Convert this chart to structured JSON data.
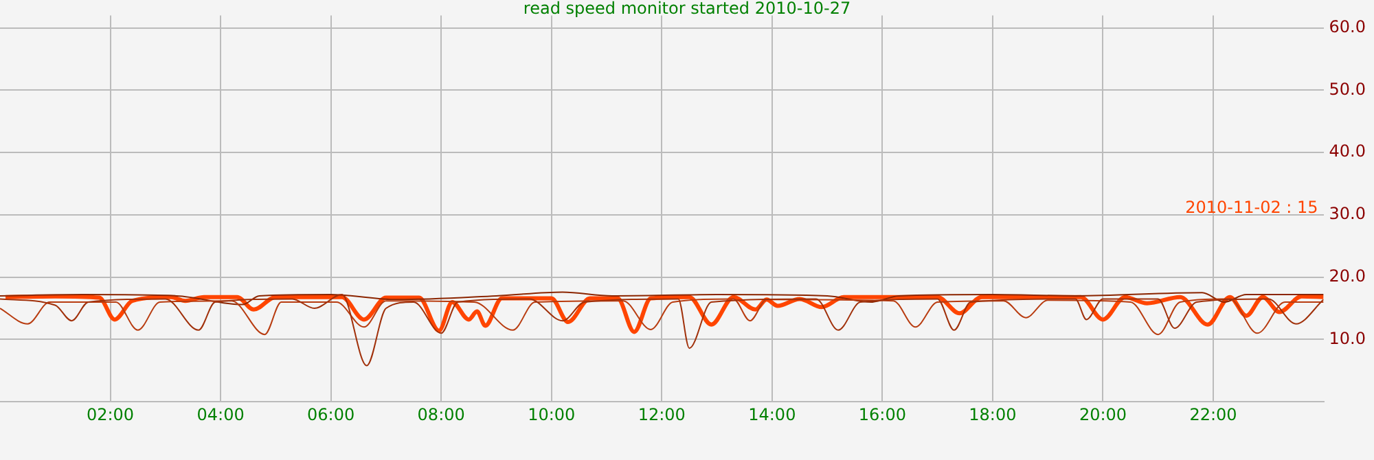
{
  "chart_data": {
    "type": "line",
    "title": "read speed monitor started 2010-10-27",
    "xlim": [
      0,
      24
    ],
    "xticks": [
      {
        "value": 2,
        "label": "02:00"
      },
      {
        "value": 4,
        "label": "04:00"
      },
      {
        "value": 6,
        "label": "06:00"
      },
      {
        "value": 8,
        "label": "08:00"
      },
      {
        "value": 10,
        "label": "10:00"
      },
      {
        "value": 12,
        "label": "12:00"
      },
      {
        "value": 14,
        "label": "14:00"
      },
      {
        "value": 16,
        "label": "16:00"
      },
      {
        "value": 18,
        "label": "18:00"
      },
      {
        "value": 20,
        "label": "20:00"
      },
      {
        "value": 22,
        "label": "22:00"
      }
    ],
    "ylim": [
      0,
      62
    ],
    "yticks": [
      {
        "value": 10,
        "label": "10.0"
      },
      {
        "value": 20,
        "label": "20.0"
      },
      {
        "value": 30,
        "label": "30.0"
      },
      {
        "value": 40,
        "label": "40.0"
      },
      {
        "value": 50,
        "label": "50.0"
      },
      {
        "value": 60,
        "label": "60.0"
      }
    ],
    "grid": true,
    "series": [
      {
        "color": "#a0300a",
        "x": [
          0,
          1.0,
          1.3,
          1.6,
          3.0,
          3.6,
          3.9,
          5.3,
          5.7,
          6.2,
          6.65,
          7.0,
          7.5,
          8.0,
          8.3,
          9.6,
          10.2,
          10.6,
          12.3,
          12.5,
          12.9,
          14.8,
          15.2,
          15.6,
          17.0,
          17.3,
          17.6,
          19.5,
          19.7,
          20,
          21,
          21.3,
          21.7,
          23,
          23.5,
          24
        ],
        "values": [
          16.5,
          15.5,
          13,
          16,
          16.5,
          11.5,
          16,
          16.5,
          15,
          17.2,
          5.8,
          15,
          16,
          11,
          16,
          16.5,
          13,
          16,
          16.5,
          8.6,
          16,
          16.5,
          11.5,
          16,
          16.5,
          11.5,
          16,
          16.5,
          13.2,
          16.5,
          16.5,
          11.8,
          16,
          16.5,
          12.5,
          16.4
        ]
      },
      {
        "color": "#b83c10",
        "x": [
          0,
          0.5,
          0.9,
          2.1,
          2.5,
          2.9,
          4.2,
          4.8,
          5.1,
          6.1,
          6.6,
          7.0,
          8.6,
          9.3,
          9.7,
          11.3,
          11.8,
          12.2,
          13.3,
          13.6,
          13.9,
          16.2,
          16.6,
          17.0,
          18.2,
          18.6,
          19,
          20.5,
          21.0,
          21.4,
          22.3,
          22.8,
          23.3,
          24
        ],
        "values": [
          15,
          12.5,
          16,
          16,
          11.5,
          16,
          16.2,
          10.8,
          16,
          16,
          12,
          16.2,
          16,
          11.5,
          16,
          16.2,
          11.6,
          16,
          16.5,
          13,
          16.4,
          16.2,
          12,
          16,
          16.2,
          13.5,
          16.3,
          16,
          10.8,
          16,
          16.5,
          11,
          16,
          16
        ]
      },
      {
        "color": "#8b2500",
        "x": [
          0,
          1.5,
          3.2,
          4.4,
          4.7,
          6.0,
          7.2,
          9,
          10.2,
          11.1,
          13,
          15,
          15.8,
          16.3,
          18,
          19.5,
          21.8,
          22.2,
          22.6,
          24
        ],
        "values": [
          17,
          17.2,
          17,
          15.6,
          17,
          17.2,
          16.4,
          17,
          17.6,
          17,
          17.2,
          17,
          16,
          17,
          17.2,
          17,
          17.5,
          16,
          17.2,
          17.2
        ]
      },
      {
        "name": "2010-11-02 : 15",
        "color": "#ff4500",
        "x": [
          0.1,
          1.0,
          1.8,
          2.08,
          2.4,
          3.1,
          3.36,
          3.7,
          4.3,
          4.6,
          5.0,
          6.2,
          6.6,
          7.0,
          7.6,
          7.96,
          8.2,
          8.5,
          8.65,
          8.8,
          9.1,
          10.0,
          10.3,
          10.7,
          11.2,
          11.5,
          11.8,
          12.5,
          12.9,
          13.3,
          13.7,
          13.9,
          14.1,
          14.5,
          14.9,
          15.3,
          17.0,
          17.4,
          17.8,
          19.6,
          20,
          20.4,
          20.8,
          21.4,
          21.9,
          22.3,
          22.6,
          22.9,
          23.2,
          23.6,
          24
        ],
        "values": [
          16.8,
          16.9,
          16.7,
          13.2,
          16.2,
          16.8,
          16.2,
          16.8,
          16.8,
          14.8,
          16.8,
          16.8,
          13.2,
          16.7,
          16.7,
          11.4,
          16.0,
          13.2,
          14.5,
          12.2,
          16.6,
          16.6,
          12.8,
          16.6,
          16.6,
          11.2,
          16.6,
          16.8,
          12.4,
          16.8,
          14.8,
          16.4,
          15.4,
          16.5,
          15.2,
          16.8,
          16.8,
          14.2,
          16.8,
          16.8,
          13.2,
          16.8,
          15.8,
          16.8,
          12.4,
          16.8,
          13.8,
          16.8,
          14.4,
          16.9,
          16.8
        ]
      }
    ]
  }
}
